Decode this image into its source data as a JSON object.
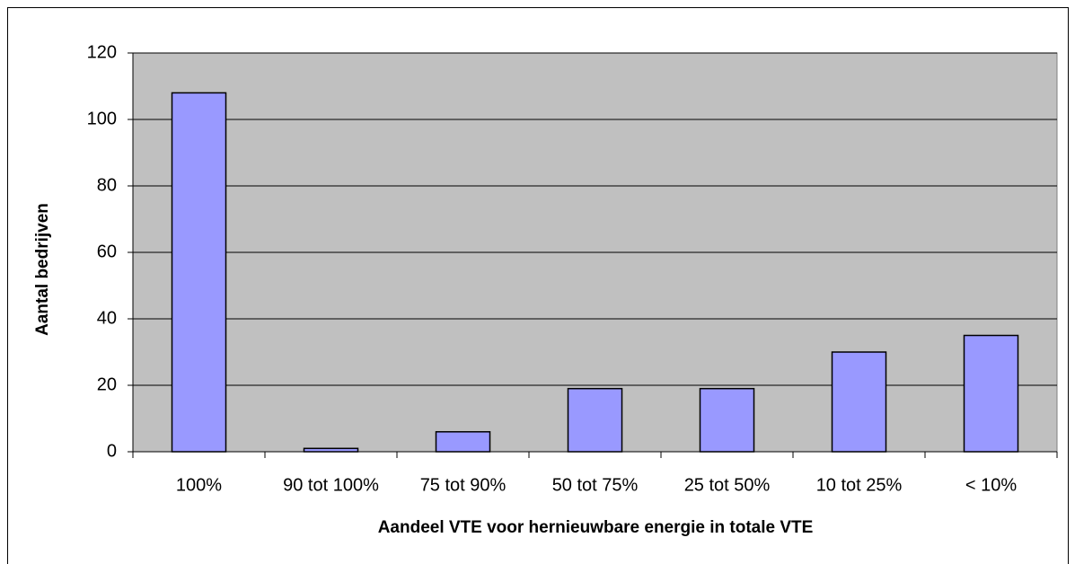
{
  "chart_data": {
    "type": "bar",
    "x_label": "Aandeel VTE voor hernieuwbare energie in totale VTE",
    "y_label": "Aantal bedrijven",
    "categories": [
      "100%",
      "90 tot 100%",
      "75 tot 90%",
      "50 tot 75%",
      "25 tot 50%",
      "10 tot 25%",
      "< 10%"
    ],
    "values": [
      108,
      1,
      6,
      19,
      19,
      30,
      35
    ],
    "color": "#9999ff",
    "ylim": [
      0,
      120
    ],
    "yticks": [
      0,
      20,
      40,
      60,
      80,
      100,
      120
    ],
    "grid": true
  }
}
